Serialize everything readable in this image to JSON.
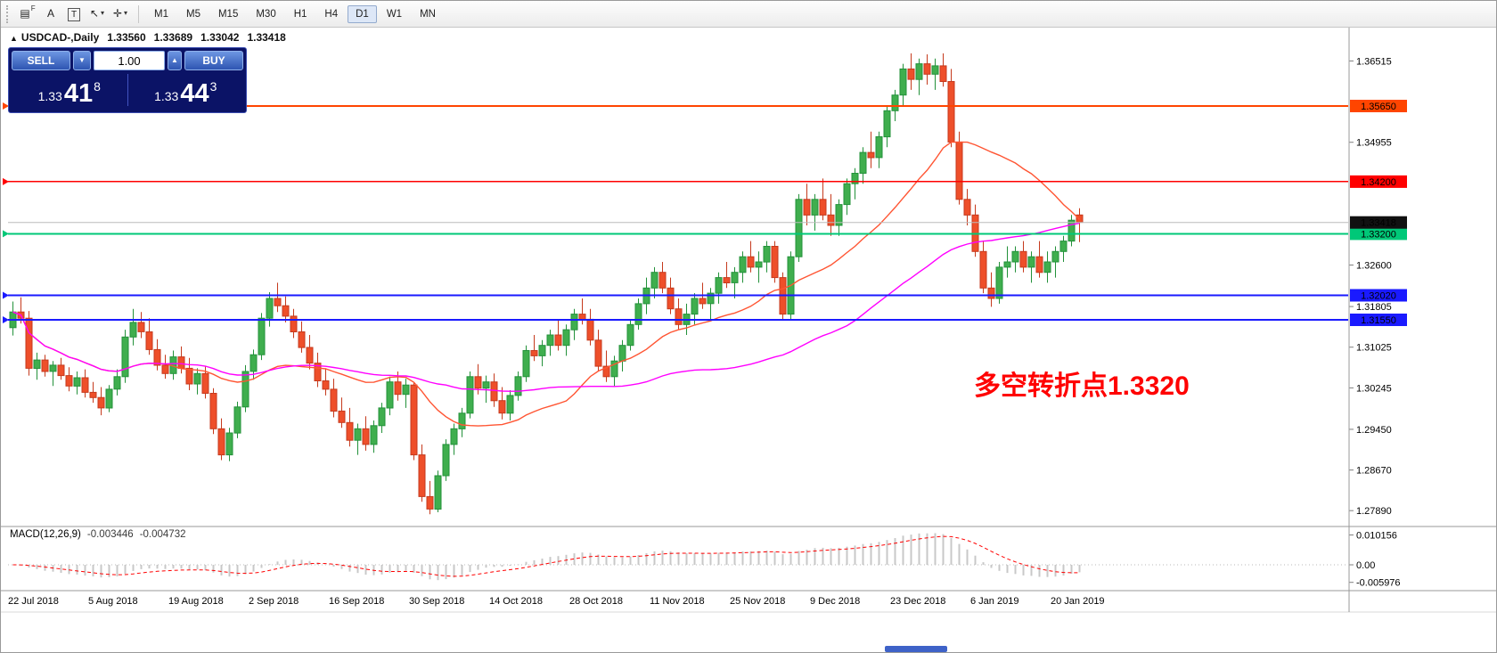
{
  "toolbar": {
    "icons": [
      {
        "name": "market-watch-grid-icon",
        "glyph": "▤",
        "badge": "F"
      },
      {
        "name": "text-label-a-icon",
        "glyph": "A"
      },
      {
        "name": "text-box-t-icon",
        "glyph": "T",
        "boxed": true
      },
      {
        "name": "cursor-tool-icon",
        "glyph": "↖",
        "dropdown": true
      },
      {
        "name": "crosshair-tool-icon",
        "glyph": "✛",
        "dropdown": true
      }
    ],
    "timeframes": [
      "M1",
      "M5",
      "M15",
      "M30",
      "H1",
      "H4",
      "D1",
      "W1",
      "MN"
    ],
    "active_timeframe": "D1"
  },
  "chart_header": {
    "toggle_glyph": "▲",
    "symbol": "USDCAD-,Daily",
    "open": "1.33560",
    "high": "1.33689",
    "low": "1.33042",
    "close": "1.33418"
  },
  "trade_panel": {
    "sell_label": "SELL",
    "buy_label": "BUY",
    "volume": "1.00",
    "dropdown_glyph": "▼",
    "spin_glyph": "▲",
    "sell_price": {
      "prefix": "1.33",
      "main": "41",
      "sup": "8"
    },
    "buy_price": {
      "prefix": "1.33",
      "main": "44",
      "sup": "3"
    }
  },
  "annotation": {
    "text": "多空转折点1.3320",
    "color": "#ff0000"
  },
  "levels": [
    {
      "price": 1.3565,
      "label": "1.35650",
      "color": "#ff4500",
      "width": 2
    },
    {
      "price": 1.342,
      "label": "1.34200",
      "color": "#ff0000",
      "width": 1.4
    },
    {
      "price": 1.332,
      "label": "1.33200",
      "color": "#00c878",
      "width": 2
    },
    {
      "price": 1.3202,
      "label": "1.32020",
      "color": "#1a1aff",
      "width": 2
    },
    {
      "price": 1.3155,
      "label": "1.31550",
      "color": "#1a1aff",
      "width": 2
    }
  ],
  "current_price": {
    "price": 1.33418,
    "label": "1.33418",
    "line_color": "#bbbbbb",
    "badge_color": "#111111"
  },
  "chart_data": {
    "type": "candlestick",
    "title": "USDCAD-,Daily",
    "colors": {
      "bull": "#3fae4e",
      "bull_stroke": "#23913a",
      "bear": "#ee4f2a",
      "bear_stroke": "#c53a1d"
    },
    "ma": [
      {
        "name": "fast",
        "period": 20,
        "color": "#ff5533"
      },
      {
        "name": "slow",
        "period": 55,
        "color": "#ff00ff"
      }
    ],
    "y_ticks": [
      {
        "v": 1.36515,
        "t": "1.36515"
      },
      {
        "v": 1.34955,
        "t": "1.34955"
      },
      {
        "v": 1.326,
        "t": "1.32600"
      },
      {
        "v": 1.31805,
        "t": "1.31805"
      },
      {
        "v": 1.31025,
        "t": "1.31025"
      },
      {
        "v": 1.30245,
        "t": "1.30245"
      },
      {
        "v": 1.2945,
        "t": "1.29450"
      },
      {
        "v": 1.2867,
        "t": "1.28670"
      },
      {
        "v": 1.2789,
        "t": "1.27890"
      }
    ],
    "x_labels": [
      {
        "i": 0,
        "t": "22 Jul 2018"
      },
      {
        "i": 10,
        "t": "5 Aug 2018"
      },
      {
        "i": 20,
        "t": "19 Aug 2018"
      },
      {
        "i": 30,
        "t": "2 Sep 2018"
      },
      {
        "i": 40,
        "t": "16 Sep 2018"
      },
      {
        "i": 50,
        "t": "30 Sep 2018"
      },
      {
        "i": 60,
        "t": "14 Oct 2018"
      },
      {
        "i": 70,
        "t": "28 Oct 2018"
      },
      {
        "i": 80,
        "t": "11 Nov 2018"
      },
      {
        "i": 90,
        "t": "25 Nov 2018"
      },
      {
        "i": 100,
        "t": "9 Dec 2018"
      },
      {
        "i": 110,
        "t": "23 Dec 2018"
      },
      {
        "i": 120,
        "t": "6 Jan 2019"
      },
      {
        "i": 130,
        "t": "20 Jan 2019"
      }
    ],
    "ohlc": [
      [
        1.314,
        1.319,
        1.3125,
        1.317
      ],
      [
        1.317,
        1.3198,
        1.3148,
        1.3158
      ],
      [
        1.3158,
        1.3172,
        1.3048,
        1.3062
      ],
      [
        1.3062,
        1.3092,
        1.304,
        1.3078
      ],
      [
        1.3078,
        1.3088,
        1.3046,
        1.3056
      ],
      [
        1.3056,
        1.3076,
        1.3028,
        1.3068
      ],
      [
        1.3068,
        1.3082,
        1.304,
        1.3048
      ],
      [
        1.3048,
        1.3064,
        1.3018,
        1.3028
      ],
      [
        1.3028,
        1.3056,
        1.3012,
        1.3044
      ],
      [
        1.3044,
        1.306,
        1.3006,
        1.3016
      ],
      [
        1.3016,
        1.3036,
        1.2996,
        1.3006
      ],
      [
        1.3006,
        1.3026,
        1.2972,
        1.2986
      ],
      [
        1.2986,
        1.303,
        1.2978,
        1.3022
      ],
      [
        1.3022,
        1.306,
        1.301,
        1.3046
      ],
      [
        1.3046,
        1.3136,
        1.3034,
        1.3122
      ],
      [
        1.3122,
        1.3176,
        1.3106,
        1.315
      ],
      [
        1.315,
        1.317,
        1.312,
        1.3132
      ],
      [
        1.3132,
        1.3158,
        1.3088,
        1.3098
      ],
      [
        1.3098,
        1.3118,
        1.3058,
        1.3068
      ],
      [
        1.3068,
        1.3088,
        1.3042,
        1.3052
      ],
      [
        1.3052,
        1.3096,
        1.304,
        1.3084
      ],
      [
        1.3084,
        1.3104,
        1.3052,
        1.3062
      ],
      [
        1.3062,
        1.3082,
        1.302,
        1.3032
      ],
      [
        1.3032,
        1.3062,
        1.3012,
        1.3052
      ],
      [
        1.3052,
        1.3066,
        1.3004,
        1.3014
      ],
      [
        1.3014,
        1.3024,
        1.2936,
        1.2946
      ],
      [
        1.2946,
        1.2966,
        1.2886,
        1.2896
      ],
      [
        1.2896,
        1.2948,
        1.2884,
        1.2938
      ],
      [
        1.2938,
        1.2998,
        1.2928,
        1.2988
      ],
      [
        1.2988,
        1.3068,
        1.2978,
        1.3056
      ],
      [
        1.3056,
        1.3098,
        1.304,
        1.3088
      ],
      [
        1.3088,
        1.3168,
        1.3078,
        1.3158
      ],
      [
        1.3158,
        1.3208,
        1.3142,
        1.3196
      ],
      [
        1.3196,
        1.3226,
        1.317,
        1.3182
      ],
      [
        1.3182,
        1.32,
        1.315,
        1.3162
      ],
      [
        1.3162,
        1.3176,
        1.312,
        1.3132
      ],
      [
        1.3132,
        1.3152,
        1.3092,
        1.3102
      ],
      [
        1.3102,
        1.3126,
        1.306,
        1.3072
      ],
      [
        1.3072,
        1.3092,
        1.3026,
        1.3038
      ],
      [
        1.3038,
        1.3062,
        1.301,
        1.3022
      ],
      [
        1.3022,
        1.3042,
        1.2968,
        1.298
      ],
      [
        1.298,
        1.3006,
        1.2948,
        1.2958
      ],
      [
        1.2958,
        1.2986,
        1.2912,
        1.2924
      ],
      [
        1.2924,
        1.2956,
        1.2896,
        1.2946
      ],
      [
        1.2946,
        1.297,
        1.2904,
        1.2916
      ],
      [
        1.2916,
        1.2962,
        1.29,
        1.2952
      ],
      [
        1.2952,
        1.2996,
        1.2938,
        1.2986
      ],
      [
        1.2986,
        1.3046,
        1.2972,
        1.3036
      ],
      [
        1.3036,
        1.3056,
        1.3,
        1.3012
      ],
      [
        1.3012,
        1.3042,
        1.2986,
        1.303
      ],
      [
        1.303,
        1.3036,
        1.2886,
        1.2896
      ],
      [
        1.2896,
        1.2916,
        1.2806,
        1.2816
      ],
      [
        1.2816,
        1.2846,
        1.2782,
        1.2792
      ],
      [
        1.2792,
        1.2866,
        1.2786,
        1.2856
      ],
      [
        1.2856,
        1.2926,
        1.2846,
        1.2916
      ],
      [
        1.2916,
        1.2956,
        1.2896,
        1.2946
      ],
      [
        1.2946,
        1.2986,
        1.293,
        1.2976
      ],
      [
        1.2976,
        1.3056,
        1.2966,
        1.3046
      ],
      [
        1.3046,
        1.307,
        1.3012,
        1.3024
      ],
      [
        1.3024,
        1.3048,
        1.2996,
        1.3036
      ],
      [
        1.3036,
        1.3052,
        1.2988,
        1.3
      ],
      [
        1.3,
        1.3026,
        1.2964,
        1.2976
      ],
      [
        1.2976,
        1.302,
        1.2962,
        1.301
      ],
      [
        1.301,
        1.3056,
        1.3,
        1.3046
      ],
      [
        1.3046,
        1.3106,
        1.3036,
        1.3096
      ],
      [
        1.3096,
        1.3126,
        1.3076,
        1.3086
      ],
      [
        1.3086,
        1.3116,
        1.3066,
        1.3106
      ],
      [
        1.3106,
        1.3136,
        1.3086,
        1.3126
      ],
      [
        1.3126,
        1.3156,
        1.3096,
        1.3106
      ],
      [
        1.3106,
        1.3146,
        1.3086,
        1.3136
      ],
      [
        1.3136,
        1.3176,
        1.3116,
        1.3166
      ],
      [
        1.3166,
        1.3196,
        1.3146,
        1.3156
      ],
      [
        1.3156,
        1.3176,
        1.3106,
        1.3116
      ],
      [
        1.3116,
        1.3136,
        1.3056,
        1.3066
      ],
      [
        1.3066,
        1.3096,
        1.3036,
        1.3046
      ],
      [
        1.3046,
        1.3086,
        1.3026,
        1.3076
      ],
      [
        1.3076,
        1.3116,
        1.3056,
        1.3106
      ],
      [
        1.3106,
        1.3156,
        1.3096,
        1.3146
      ],
      [
        1.3146,
        1.3196,
        1.3136,
        1.3186
      ],
      [
        1.3186,
        1.3236,
        1.3166,
        1.3216
      ],
      [
        1.3216,
        1.3256,
        1.3196,
        1.3246
      ],
      [
        1.3246,
        1.3266,
        1.3206,
        1.3216
      ],
      [
        1.3216,
        1.3236,
        1.3166,
        1.3176
      ],
      [
        1.3176,
        1.3196,
        1.3136,
        1.3146
      ],
      [
        1.3146,
        1.3186,
        1.3126,
        1.3166
      ],
      [
        1.3166,
        1.3206,
        1.3146,
        1.3196
      ],
      [
        1.3196,
        1.3226,
        1.3176,
        1.3186
      ],
      [
        1.3186,
        1.3216,
        1.3156,
        1.3206
      ],
      [
        1.3206,
        1.3246,
        1.3186,
        1.3236
      ],
      [
        1.3236,
        1.3266,
        1.3216,
        1.3226
      ],
      [
        1.3226,
        1.3256,
        1.3196,
        1.3246
      ],
      [
        1.3246,
        1.3286,
        1.3226,
        1.3276
      ],
      [
        1.3276,
        1.3306,
        1.3246,
        1.3256
      ],
      [
        1.3256,
        1.3286,
        1.3226,
        1.3266
      ],
      [
        1.3266,
        1.3306,
        1.3246,
        1.3296
      ],
      [
        1.3296,
        1.3306,
        1.3226,
        1.3236
      ],
      [
        1.3236,
        1.3246,
        1.3156,
        1.3166
      ],
      [
        1.3166,
        1.3286,
        1.3156,
        1.3276
      ],
      [
        1.3276,
        1.3396,
        1.3266,
        1.3386
      ],
      [
        1.3386,
        1.3416,
        1.3336,
        1.3356
      ],
      [
        1.3356,
        1.3396,
        1.3326,
        1.3386
      ],
      [
        1.3386,
        1.3426,
        1.3346,
        1.3356
      ],
      [
        1.3356,
        1.3396,
        1.3316,
        1.3336
      ],
      [
        1.3336,
        1.3386,
        1.3316,
        1.3376
      ],
      [
        1.3376,
        1.3426,
        1.3356,
        1.3416
      ],
      [
        1.3416,
        1.3446,
        1.3386,
        1.3436
      ],
      [
        1.3436,
        1.3486,
        1.3416,
        1.3476
      ],
      [
        1.3476,
        1.3516,
        1.3446,
        1.3466
      ],
      [
        1.3466,
        1.3516,
        1.3446,
        1.3506
      ],
      [
        1.3506,
        1.3566,
        1.3486,
        1.3556
      ],
      [
        1.3556,
        1.3596,
        1.3536,
        1.3586
      ],
      [
        1.3586,
        1.3646,
        1.3566,
        1.3636
      ],
      [
        1.3636,
        1.3666,
        1.3596,
        1.3616
      ],
      [
        1.3616,
        1.3656,
        1.3586,
        1.3646
      ],
      [
        1.3646,
        1.3664,
        1.3606,
        1.3626
      ],
      [
        1.3626,
        1.3656,
        1.3596,
        1.3642
      ],
      [
        1.3642,
        1.3666,
        1.3602,
        1.3612
      ],
      [
        1.3612,
        1.3636,
        1.3486,
        1.3496
      ],
      [
        1.3496,
        1.3516,
        1.3376,
        1.3386
      ],
      [
        1.3386,
        1.3406,
        1.3336,
        1.3356
      ],
      [
        1.3356,
        1.3376,
        1.3276,
        1.3286
      ],
      [
        1.3286,
        1.3306,
        1.3206,
        1.3216
      ],
      [
        1.3216,
        1.3246,
        1.318,
        1.3196
      ],
      [
        1.3196,
        1.3266,
        1.3186,
        1.3256
      ],
      [
        1.3256,
        1.3296,
        1.3236,
        1.3266
      ],
      [
        1.3266,
        1.3296,
        1.3246,
        1.3286
      ],
      [
        1.3286,
        1.3306,
        1.3246,
        1.3256
      ],
      [
        1.3256,
        1.3286,
        1.3226,
        1.3276
      ],
      [
        1.3276,
        1.3306,
        1.3236,
        1.3246
      ],
      [
        1.3246,
        1.3286,
        1.3226,
        1.3266
      ],
      [
        1.3266,
        1.3296,
        1.3236,
        1.3286
      ],
      [
        1.3286,
        1.3316,
        1.3266,
        1.3306
      ],
      [
        1.3306,
        1.3356,
        1.3296,
        1.3346
      ],
      [
        1.3356,
        1.33689,
        1.33042,
        1.33418
      ]
    ],
    "macd": {
      "label": "MACD(12,26,9)",
      "params": [
        12,
        26,
        9
      ],
      "main": "-0.003446",
      "signal": "-0.004732",
      "histogram_color": "#c8c8c8",
      "signal_color": "#ff0000",
      "ticks": [
        {
          "v": 0.010156,
          "t": "0.010156"
        },
        {
          "v": 0,
          "t": "0.00"
        },
        {
          "v": -0.005976,
          "t": "-0.005976"
        }
      ]
    }
  }
}
